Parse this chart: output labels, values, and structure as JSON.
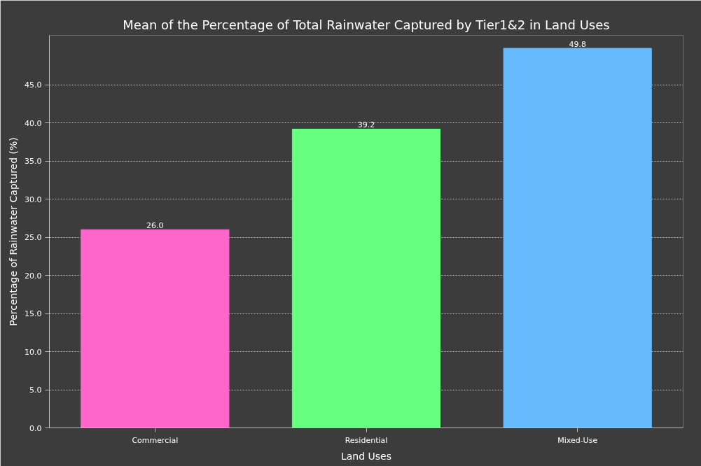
{
  "chart_data": {
    "type": "bar",
    "title": "Mean of the Percentage of Total Rainwater Captured by Tier1&2 in Land Uses",
    "xlabel": "Land Uses",
    "ylabel": "Percentage of Rainwater Captured (%)",
    "categories": [
      "Commercial",
      "Residential",
      "Mixed-Use"
    ],
    "values": [
      26.0,
      39.2,
      49.8
    ],
    "colors": [
      "#ff66cc",
      "#66ff7f",
      "#66bbff"
    ],
    "ylim": [
      0,
      51.5
    ],
    "yticks": [
      {
        "value": 0,
        "label": "0.0"
      },
      {
        "value": 5,
        "label": "5.0"
      },
      {
        "value": 10,
        "label": "10.0"
      },
      {
        "value": 15,
        "label": "15.0"
      },
      {
        "value": 20,
        "label": "20.0"
      },
      {
        "value": 25,
        "label": "25.0"
      },
      {
        "value": 30,
        "label": "30.0"
      },
      {
        "value": 35,
        "label": "35.0"
      },
      {
        "value": 40,
        "label": "40.0"
      },
      {
        "value": 45,
        "label": "45.0"
      }
    ],
    "value_labels": [
      "26.0",
      "39.2",
      "49.8"
    ],
    "grid": "y"
  }
}
